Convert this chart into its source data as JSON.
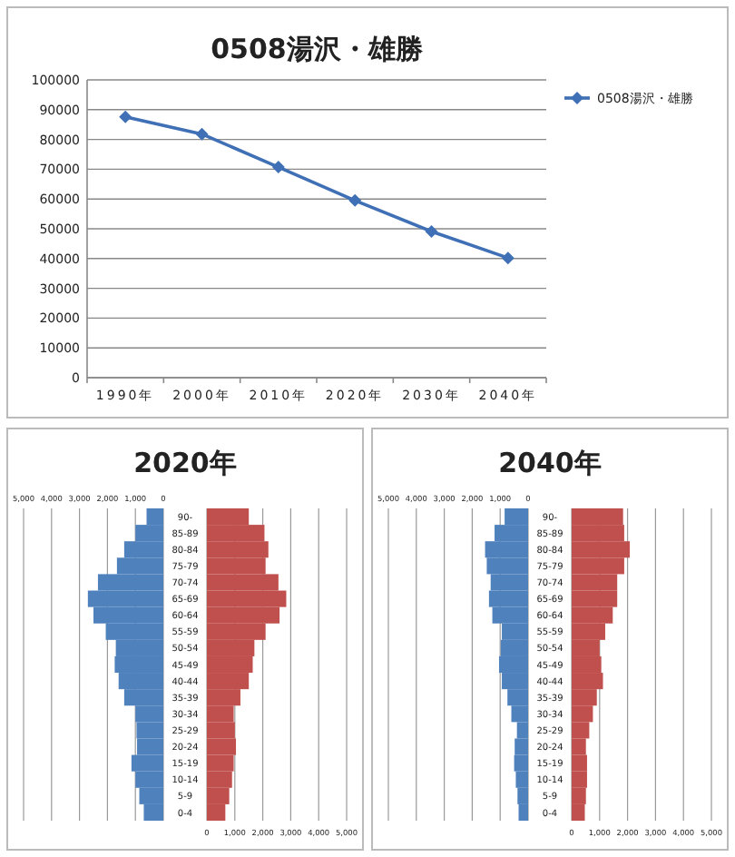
{
  "chart_data": [
    {
      "type": "line",
      "title": "0508湯沢・雄勝",
      "categories": [
        "1990年",
        "2000年",
        "2010年",
        "2020年",
        "2030年",
        "2040年"
      ],
      "series": [
        {
          "name": "0508湯沢・雄勝",
          "color": "#3f6fb5",
          "values": [
            87600,
            81800,
            70700,
            59500,
            49100,
            40200
          ]
        }
      ],
      "ylim": [
        0,
        100000
      ],
      "yticks": [
        0,
        10000,
        20000,
        30000,
        40000,
        50000,
        60000,
        70000,
        80000,
        90000,
        100000
      ],
      "grid": "y",
      "legend": "right",
      "marker": "diamond"
    },
    {
      "type": "bar",
      "orientation": "horizontal",
      "title": "2020年",
      "categories": [
        "90-",
        "85-89",
        "80-84",
        "75-79",
        "70-74",
        "65-69",
        "60-64",
        "55-59",
        "50-54",
        "45-49",
        "40-44",
        "35-39",
        "30-34",
        "25-29",
        "20-24",
        "15-19",
        "10-14",
        "5-9",
        "0-4"
      ],
      "series": [
        {
          "color": "#4f81bd",
          "axis": "x2",
          "values": [
            600,
            1000,
            1400,
            1660,
            2340,
            2700,
            2500,
            2060,
            1700,
            1740,
            1600,
            1400,
            1000,
            960,
            940,
            1140,
            1000,
            860,
            700
          ]
        },
        {
          "color": "#c0504d",
          "values": [
            1500,
            2060,
            2200,
            2100,
            2560,
            2840,
            2600,
            2100,
            1700,
            1640,
            1500,
            1200,
            960,
            1000,
            1040,
            960,
            900,
            800,
            660
          ]
        }
      ],
      "xlim": [
        0,
        5000
      ],
      "xticks": [
        {
          "value": 0,
          "label": "0"
        },
        {
          "value": 1000,
          "label": "1,000"
        },
        {
          "value": 2000,
          "label": "2,000"
        },
        {
          "value": 3000,
          "label": "3,000"
        },
        {
          "value": 4000,
          "label": "4,000"
        },
        {
          "value": 5000,
          "label": "5,000"
        }
      ],
      "x2lim": [
        5000,
        0
      ],
      "x2ticks": [
        {
          "value": 5000,
          "label": "5,000"
        },
        {
          "value": 4000,
          "label": "4,000"
        },
        {
          "value": 3000,
          "label": "3,000"
        },
        {
          "value": 2000,
          "label": "2,000"
        },
        {
          "value": 1000,
          "label": "1,000"
        },
        {
          "value": 0,
          "label": "0"
        }
      ],
      "grid": "x"
    },
    {
      "type": "bar",
      "orientation": "horizontal",
      "title": "2040年",
      "categories": [
        "90-",
        "85-89",
        "80-84",
        "75-79",
        "70-74",
        "65-69",
        "60-64",
        "55-59",
        "50-54",
        "45-49",
        "40-44",
        "35-39",
        "30-34",
        "25-29",
        "20-24",
        "15-19",
        "10-14",
        "5-9",
        "0-4"
      ],
      "series": [
        {
          "color": "#4f81bd",
          "axis": "x2",
          "values": [
            840,
            1200,
            1540,
            1480,
            1340,
            1400,
            1280,
            940,
            980,
            1040,
            940,
            740,
            600,
            400,
            480,
            500,
            440,
            380,
            340
          ]
        },
        {
          "color": "#c0504d",
          "values": [
            1840,
            1880,
            2080,
            1880,
            1630,
            1630,
            1470,
            1200,
            1000,
            1060,
            1120,
            900,
            760,
            630,
            510,
            550,
            550,
            510,
            470
          ]
        }
      ],
      "xlim": [
        0,
        5000
      ],
      "xticks": [
        {
          "value": 0,
          "label": "0"
        },
        {
          "value": 1000,
          "label": "1,000"
        },
        {
          "value": 2000,
          "label": "2,000"
        },
        {
          "value": 3000,
          "label": "3,000"
        },
        {
          "value": 4000,
          "label": "4,000"
        },
        {
          "value": 5000,
          "label": "5,000"
        }
      ],
      "x2lim": [
        5000,
        0
      ],
      "x2ticks": [
        {
          "value": 5000,
          "label": "5,000"
        },
        {
          "value": 4000,
          "label": "4,000"
        },
        {
          "value": 3000,
          "label": "3,000"
        },
        {
          "value": 2000,
          "label": "2,000"
        },
        {
          "value": 1000,
          "label": "1,000"
        },
        {
          "value": 0,
          "label": "0"
        }
      ],
      "grid": "x"
    }
  ]
}
